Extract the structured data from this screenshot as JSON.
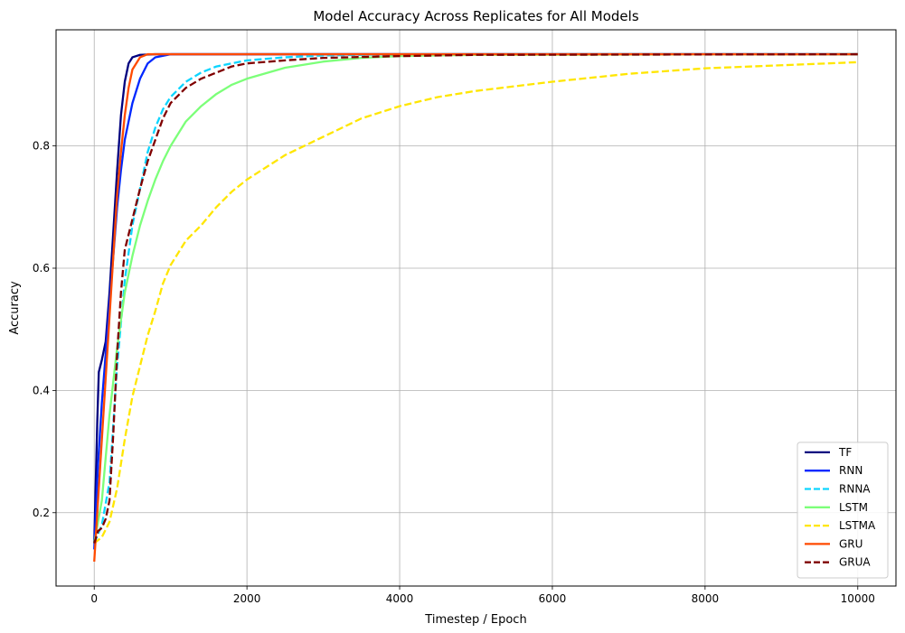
{
  "chart_data": {
    "type": "line",
    "title": "Model Accuracy Across Replicates for All Models",
    "xlabel": "Timestep / Epoch",
    "ylabel": "Accuracy",
    "xlim": [
      -500,
      10500
    ],
    "ylim": [
      0.08,
      0.99
    ],
    "xticks": [
      0,
      2000,
      4000,
      6000,
      8000,
      10000
    ],
    "xtick_labels": [
      "0",
      "2000",
      "4000",
      "6000",
      "8000",
      "10000"
    ],
    "yticks": [
      0.2,
      0.4,
      0.6,
      0.8
    ],
    "ytick_labels": [
      "0.2",
      "0.4",
      "0.6",
      "0.8"
    ],
    "grid": true,
    "legend_position": "lower-right",
    "series": [
      {
        "name": "TF",
        "color": "#00007f",
        "dash": "solid",
        "points": [
          [
            0,
            0.15
          ],
          [
            40,
            0.35
          ],
          [
            60,
            0.43
          ],
          [
            100,
            0.45
          ],
          [
            150,
            0.48
          ],
          [
            200,
            0.56
          ],
          [
            250,
            0.66
          ],
          [
            300,
            0.76
          ],
          [
            350,
            0.85
          ],
          [
            400,
            0.905
          ],
          [
            450,
            0.935
          ],
          [
            500,
            0.945
          ],
          [
            600,
            0.949
          ],
          [
            800,
            0.95
          ],
          [
            10000,
            0.95
          ]
        ]
      },
      {
        "name": "RNN",
        "color": "#0028ff",
        "dash": "solid",
        "points": [
          [
            0,
            0.14
          ],
          [
            50,
            0.28
          ],
          [
            100,
            0.38
          ],
          [
            150,
            0.46
          ],
          [
            200,
            0.54
          ],
          [
            250,
            0.62
          ],
          [
            300,
            0.7
          ],
          [
            350,
            0.76
          ],
          [
            400,
            0.81
          ],
          [
            500,
            0.87
          ],
          [
            600,
            0.91
          ],
          [
            700,
            0.935
          ],
          [
            800,
            0.945
          ],
          [
            1000,
            0.95
          ],
          [
            10000,
            0.95
          ]
        ]
      },
      {
        "name": "RNNA",
        "color": "#0dd5ff",
        "dash": "dashed",
        "points": [
          [
            0,
            0.15
          ],
          [
            100,
            0.18
          ],
          [
            200,
            0.25
          ],
          [
            300,
            0.44
          ],
          [
            400,
            0.58
          ],
          [
            500,
            0.67
          ],
          [
            600,
            0.73
          ],
          [
            700,
            0.79
          ],
          [
            800,
            0.83
          ],
          [
            900,
            0.86
          ],
          [
            1000,
            0.88
          ],
          [
            1200,
            0.905
          ],
          [
            1400,
            0.92
          ],
          [
            1600,
            0.93
          ],
          [
            2000,
            0.94
          ],
          [
            2500,
            0.945
          ],
          [
            3000,
            0.948
          ],
          [
            4000,
            0.95
          ],
          [
            10000,
            0.95
          ]
        ]
      },
      {
        "name": "LSTM",
        "color": "#7cff79",
        "dash": "solid",
        "points": [
          [
            0,
            0.15
          ],
          [
            100,
            0.22
          ],
          [
            200,
            0.36
          ],
          [
            300,
            0.47
          ],
          [
            400,
            0.56
          ],
          [
            500,
            0.62
          ],
          [
            600,
            0.67
          ],
          [
            700,
            0.71
          ],
          [
            800,
            0.745
          ],
          [
            900,
            0.775
          ],
          [
            1000,
            0.8
          ],
          [
            1200,
            0.84
          ],
          [
            1400,
            0.865
          ],
          [
            1600,
            0.885
          ],
          [
            1800,
            0.9
          ],
          [
            2000,
            0.91
          ],
          [
            2500,
            0.928
          ],
          [
            3000,
            0.938
          ],
          [
            3500,
            0.944
          ],
          [
            4000,
            0.947
          ],
          [
            5000,
            0.949
          ],
          [
            10000,
            0.95
          ]
        ]
      },
      {
        "name": "LSTMA",
        "color": "#ffe600",
        "dash": "dashed",
        "points": [
          [
            0,
            0.15
          ],
          [
            100,
            0.16
          ],
          [
            200,
            0.185
          ],
          [
            300,
            0.24
          ],
          [
            400,
            0.32
          ],
          [
            500,
            0.39
          ],
          [
            600,
            0.44
          ],
          [
            700,
            0.49
          ],
          [
            800,
            0.53
          ],
          [
            900,
            0.575
          ],
          [
            1000,
            0.605
          ],
          [
            1200,
            0.645
          ],
          [
            1400,
            0.67
          ],
          [
            1600,
            0.7
          ],
          [
            1800,
            0.725
          ],
          [
            2000,
            0.745
          ],
          [
            2500,
            0.785
          ],
          [
            3000,
            0.815
          ],
          [
            3500,
            0.845
          ],
          [
            4000,
            0.865
          ],
          [
            4500,
            0.88
          ],
          [
            5000,
            0.89
          ],
          [
            6000,
            0.905
          ],
          [
            7000,
            0.918
          ],
          [
            8000,
            0.927
          ],
          [
            9000,
            0.932
          ],
          [
            10000,
            0.937
          ]
        ]
      },
      {
        "name": "GRU",
        "color": "#ff4a00",
        "dash": "solid",
        "points": [
          [
            0,
            0.12
          ],
          [
            50,
            0.22
          ],
          [
            100,
            0.32
          ],
          [
            150,
            0.42
          ],
          [
            200,
            0.52
          ],
          [
            250,
            0.62
          ],
          [
            300,
            0.72
          ],
          [
            350,
            0.79
          ],
          [
            400,
            0.85
          ],
          [
            450,
            0.895
          ],
          [
            500,
            0.925
          ],
          [
            600,
            0.945
          ],
          [
            700,
            0.95
          ],
          [
            10000,
            0.95
          ]
        ]
      },
      {
        "name": "GRUA",
        "color": "#7f0000",
        "dash": "dashed",
        "points": [
          [
            0,
            0.15
          ],
          [
            50,
            0.17
          ],
          [
            100,
            0.175
          ],
          [
            150,
            0.19
          ],
          [
            200,
            0.22
          ],
          [
            250,
            0.33
          ],
          [
            300,
            0.46
          ],
          [
            350,
            0.56
          ],
          [
            400,
            0.63
          ],
          [
            500,
            0.68
          ],
          [
            600,
            0.73
          ],
          [
            700,
            0.775
          ],
          [
            800,
            0.81
          ],
          [
            900,
            0.845
          ],
          [
            1000,
            0.87
          ],
          [
            1200,
            0.895
          ],
          [
            1400,
            0.91
          ],
          [
            1600,
            0.92
          ],
          [
            1800,
            0.93
          ],
          [
            2000,
            0.935
          ],
          [
            2500,
            0.94
          ],
          [
            3000,
            0.944
          ],
          [
            4000,
            0.947
          ],
          [
            5000,
            0.949
          ],
          [
            10000,
            0.95
          ]
        ]
      }
    ]
  }
}
